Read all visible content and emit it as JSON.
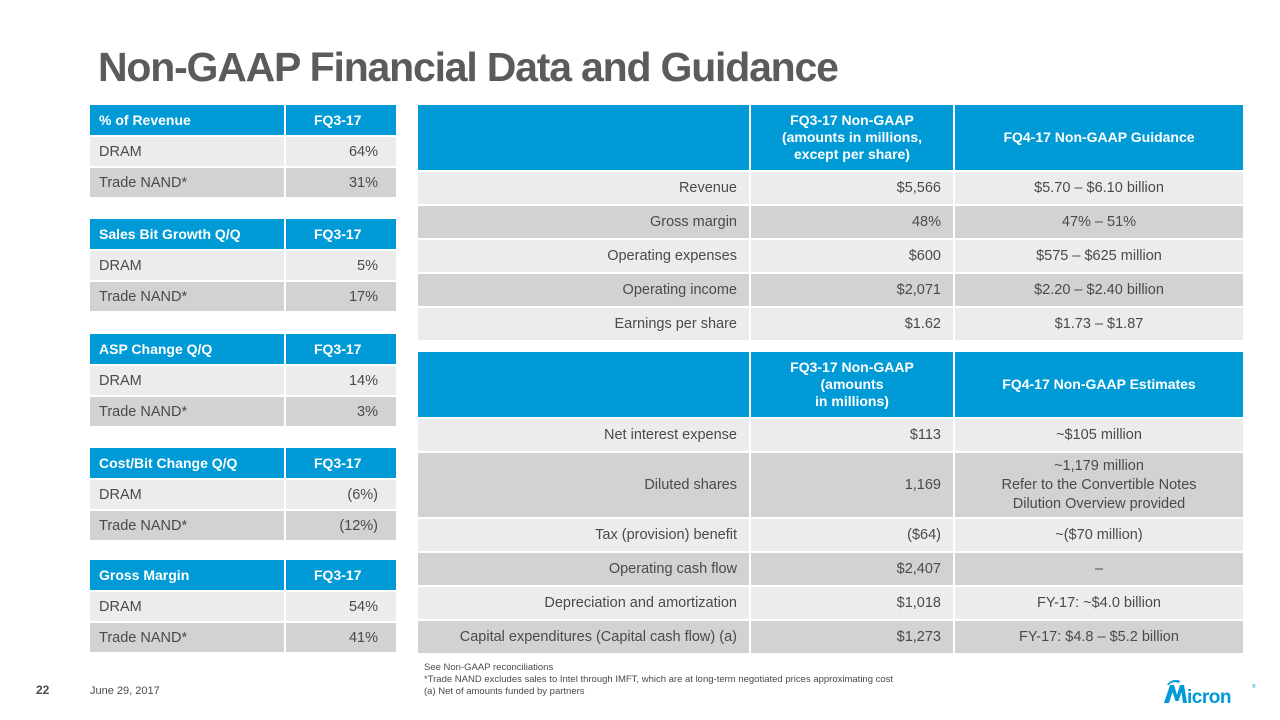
{
  "title": "Non-GAAP Financial Data and Guidance",
  "left_tables": [
    {
      "header": [
        "% of Revenue",
        "FQ3-17"
      ],
      "rows": [
        [
          "DRAM",
          "64%"
        ],
        [
          "Trade NAND*",
          "31%"
        ]
      ]
    },
    {
      "header": [
        "Sales Bit Growth Q/Q",
        "FQ3-17"
      ],
      "rows": [
        [
          "DRAM",
          "5%"
        ],
        [
          "Trade NAND*",
          "17%"
        ]
      ]
    },
    {
      "header": [
        "ASP Change Q/Q",
        "FQ3-17"
      ],
      "rows": [
        [
          "DRAM",
          "14%"
        ],
        [
          "Trade NAND*",
          "3%"
        ]
      ]
    },
    {
      "header": [
        "Cost/Bit Change Q/Q",
        "FQ3-17"
      ],
      "rows": [
        [
          "DRAM",
          "(6%)"
        ],
        [
          "Trade NAND*",
          "(12%)"
        ]
      ]
    },
    {
      "header": [
        "Gross Margin",
        "FQ3-17"
      ],
      "rows": [
        [
          "DRAM",
          "54%"
        ],
        [
          "Trade NAND*",
          "41%"
        ]
      ]
    }
  ],
  "guidance_table": {
    "header": {
      "col1": "",
      "col2_lines": [
        "FQ3-17 Non-GAAP",
        "(amounts in millions,",
        "except per share)"
      ],
      "col3": "FQ4-17 Non-GAAP Guidance"
    },
    "rows": [
      [
        "Revenue",
        "$5,566",
        "$5.70 – $6.10 billion"
      ],
      [
        "Gross margin",
        "48%",
        "47% – 51%"
      ],
      [
        "Operating expenses",
        "$600",
        "$575 – $625 million"
      ],
      [
        "Operating income",
        "$2,071",
        "$2.20 – $2.40 billion"
      ],
      [
        "Earnings per share",
        "$1.62",
        "$1.73 – $1.87"
      ]
    ]
  },
  "estimates_table": {
    "header": {
      "col1": "",
      "col2_lines": [
        "FQ3-17 Non-GAAP",
        "(amounts",
        "in millions)"
      ],
      "col3": "FQ4-17 Non-GAAP Estimates"
    },
    "rows": [
      [
        "Net interest expense",
        "$113",
        "~$105 million"
      ],
      [
        "Diluted shares",
        "1,169",
        "~1,179 million"
      ],
      [
        "Tax (provision) benefit",
        "($64)",
        "~($70 million)"
      ],
      [
        "Operating cash flow",
        "$2,407",
        "–"
      ],
      [
        "Depreciation and amortization",
        "$1,018",
        "FY-17: ~$4.0 billion"
      ],
      [
        "Capital expenditures (Capital cash flow) (a)",
        "$1,273",
        "FY-17: $4.8 – $5.2 billion"
      ]
    ],
    "diluted_note_lines": [
      "Refer to the Convertible Notes",
      "Dilution Overview provided"
    ]
  },
  "footnotes": [
    "See Non-GAAP reconciliations",
    "*Trade NAND excludes sales to Intel through IMFT,  which are at long-term negotiated prices approximating cost",
    "(a)    Net of amounts funded by partners"
  ],
  "page_number": "22",
  "date": "June 29, 2017",
  "logo": {
    "text": "Micron",
    "color": "#009ad6",
    "icon": "micron-logo"
  },
  "colors": {
    "header_blue": "#009ad6",
    "row_light": "#ececec",
    "row_dark": "#d2d2d2",
    "title_gray": "#5b5b5b"
  }
}
